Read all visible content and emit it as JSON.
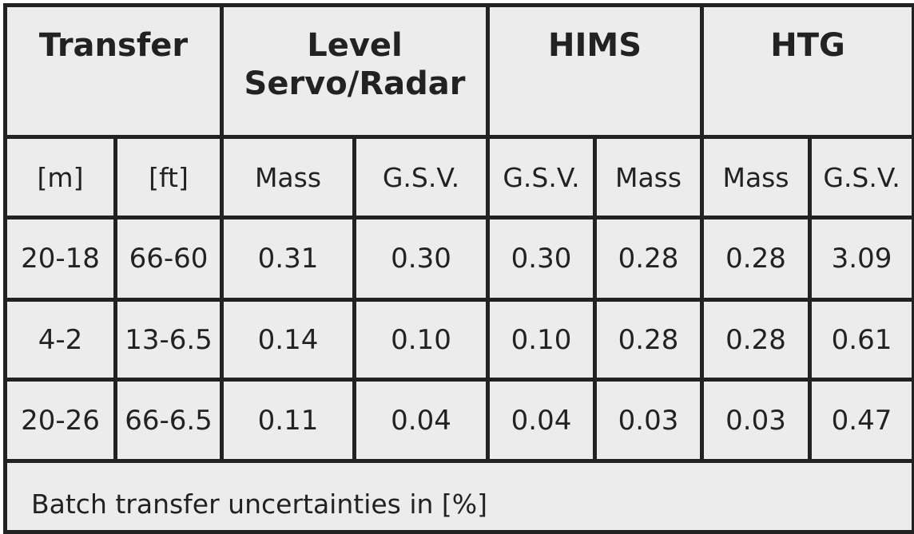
{
  "header": {
    "transfer": "Transfer",
    "level_line1": "Level",
    "level_line2": "Servo/Radar",
    "hims": "HIMS",
    "htg": "HTG"
  },
  "subheader": [
    "[m]",
    "[ft]",
    "Mass",
    "G.S.V.",
    "G.S.V.",
    "Mass",
    "Mass",
    "G.S.V."
  ],
  "rows": [
    [
      "20-18",
      "66-60",
      "0.31",
      "0.30",
      "0.30",
      "0.28",
      "0.28",
      "3.09"
    ],
    [
      "4-2",
      "13-6.5",
      "0.14",
      "0.10",
      "0.10",
      "0.28",
      "0.28",
      "0.61"
    ],
    [
      "20-26",
      "66-6.5",
      "0.11",
      "0.04",
      "0.04",
      "0.03",
      "0.03",
      "0.47"
    ]
  ],
  "caption": "Batch transfer uncertainties in [%]"
}
